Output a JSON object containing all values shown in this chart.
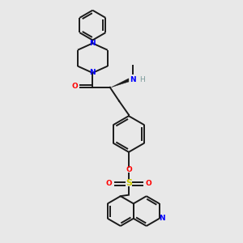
{
  "bg_color": "#e8e8e8",
  "bond_color": "#1a1a1a",
  "bond_width": 1.4,
  "N_color": "#0000ff",
  "O_color": "#ff0000",
  "S_color": "#cccc00",
  "H_color": "#7a9a9a",
  "figsize": [
    3.0,
    3.0
  ],
  "dpi": 100,
  "xlim": [
    0,
    10
  ],
  "ylim": [
    0,
    10
  ]
}
